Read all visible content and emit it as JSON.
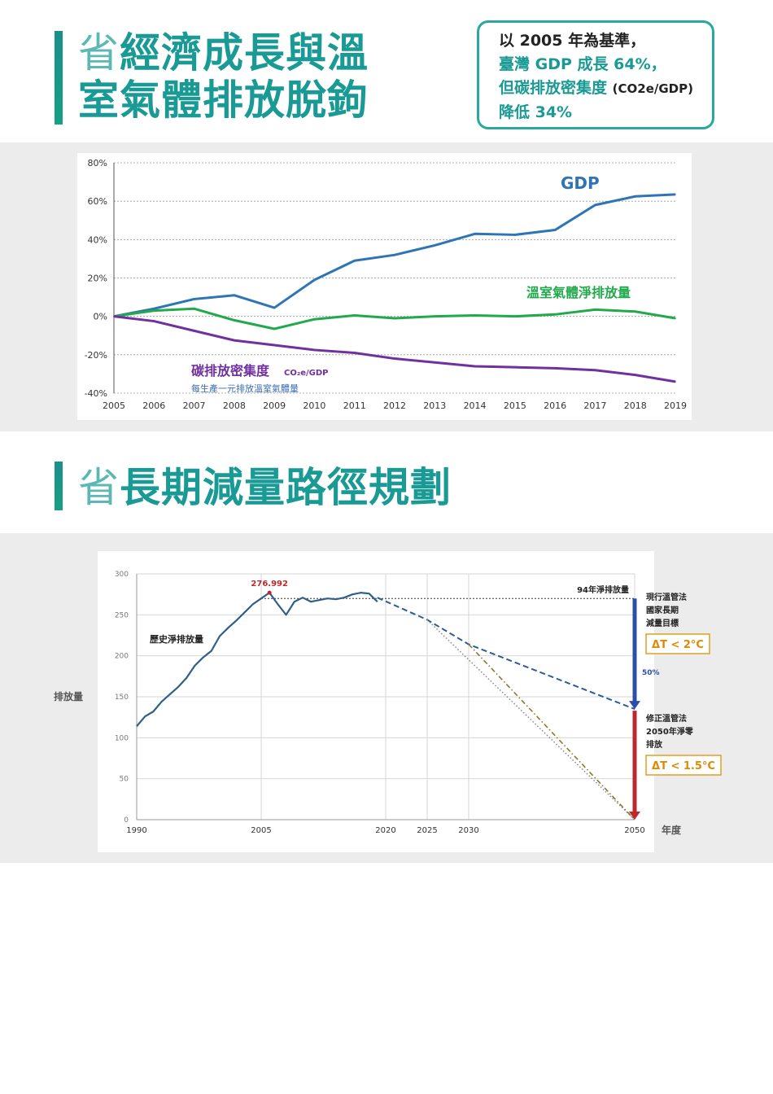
{
  "section1": {
    "title_lead": "省",
    "title_line1": "經濟成長與溫",
    "title_line2": "室氣體排放脫鉤"
  },
  "info_box": {
    "line1": "以 2005 年為基準，",
    "line2": "臺灣 GDP 成長 64%，",
    "line3_main": "但碳排放密集度",
    "line3_small": "(CO2e/GDP)",
    "line4": "降低 34%"
  },
  "section2": {
    "title_lead": "省",
    "title": "長期減量路徑規劃"
  },
  "colors": {
    "teal": "#1a9a94",
    "gdp": "#2e75b6",
    "ghg": "#22a94b",
    "intensity": "#7030a0",
    "hist": "#2f5f8a",
    "red_arrow": "#c0272d",
    "blue_arrow": "#2b4fa8",
    "orange_box": "#e0a020"
  },
  "chart_data": [
    {
      "type": "line",
      "x": [
        2005,
        2006,
        2007,
        2008,
        2009,
        2010,
        2011,
        2012,
        2013,
        2014,
        2015,
        2016,
        2017,
        2018,
        2019
      ],
      "xlim": [
        2005,
        2019
      ],
      "ylim": [
        -40,
        80
      ],
      "yticks": [
        -40,
        -20,
        0,
        20,
        40,
        60,
        80
      ],
      "ytick_labels": [
        "-40%",
        "-20%",
        "0%",
        "20%",
        "40%",
        "60%",
        "80%"
      ],
      "grid": true,
      "series": [
        {
          "name": "GDP",
          "color": "#2e75b6",
          "values": [
            0,
            4,
            9,
            11,
            4.5,
            19,
            29,
            32,
            37,
            43,
            42.5,
            45,
            58,
            62.5,
            63.5
          ]
        },
        {
          "name": "溫室氣體淨排放量",
          "color": "#22a94b",
          "values": [
            0,
            3,
            4,
            -2,
            -6.5,
            -1.5,
            0.5,
            -1,
            0,
            0.5,
            0,
            1,
            3.5,
            2.5,
            -1
          ]
        },
        {
          "name": "碳排放密集度",
          "unit": "CO₂e/GDP",
          "note": "每生產一元排放溫室氣體量",
          "color": "#7030a0",
          "values": [
            0,
            -2.5,
            -7.5,
            -12.5,
            -15,
            -17.5,
            -19,
            -22,
            -24,
            -26,
            -26.5,
            -27,
            -28,
            -30.5,
            -34
          ]
        }
      ]
    },
    {
      "type": "line",
      "ylabel": "排放量",
      "xlabel": "年度",
      "xlim": [
        1990,
        2050
      ],
      "ylim": [
        0,
        300
      ],
      "yticks": [
        0,
        50,
        100,
        150,
        200,
        250,
        300
      ],
      "xticks": [
        1990,
        2005,
        2020,
        2025,
        2030,
        2050
      ],
      "peak_label": "276.992",
      "historical": {
        "name": "歷史淨排放量",
        "x": [
          1990,
          1991,
          1992,
          1993,
          1994,
          1995,
          1996,
          1997,
          1998,
          1999,
          2000,
          2001,
          2002,
          2003,
          2004,
          2005,
          2006,
          2007,
          2008,
          2009,
          2010,
          2011,
          2012,
          2013,
          2014,
          2015,
          2016,
          2017,
          2018,
          2019
        ],
        "values": [
          114,
          126,
          132,
          144,
          153,
          162,
          173,
          188,
          198,
          206,
          224,
          234,
          243,
          253,
          263,
          270,
          277,
          263,
          250,
          266,
          271,
          266,
          268,
          270,
          269,
          271,
          275,
          277,
          276,
          266
        ]
      },
      "baseline": {
        "name": "94年淨排放量",
        "value": 270
      },
      "path_current": {
        "x": [
          2019,
          2025,
          2030,
          2050
        ],
        "values": [
          271,
          244,
          214,
          135
        ]
      },
      "path_netzero_dotted": {
        "x": [
          2025,
          2050
        ],
        "values": [
          244,
          0
        ]
      },
      "path_netzero_dashdot": {
        "x": [
          2030,
          2050
        ],
        "values": [
          214,
          0
        ]
      },
      "arrow_blue_label": "50%",
      "annotation_top": {
        "lines": [
          "現行溫管法",
          "國家長期",
          "減量目標"
        ],
        "box": "ΔT < 2°C"
      },
      "annotation_bottom": {
        "lines": [
          "修正溫管法",
          "2050年淨零",
          "排放"
        ],
        "box": "ΔT < 1.5°C"
      }
    }
  ]
}
